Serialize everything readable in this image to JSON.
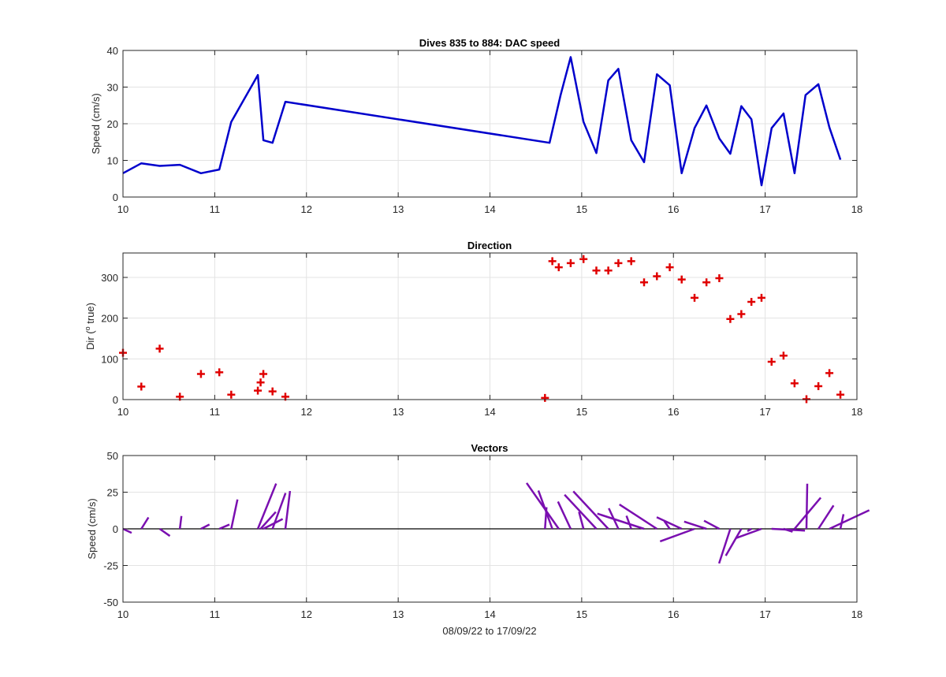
{
  "chart_data": [
    {
      "type": "line",
      "title": "Dives 835 to 884: DAC speed",
      "xlabel": "",
      "ylabel": "Speed (cm/s)",
      "xlim": [
        10,
        18
      ],
      "ylim": [
        0,
        40
      ],
      "xticks": [
        10,
        11,
        12,
        13,
        14,
        15,
        16,
        17,
        18
      ],
      "yticks": [
        0,
        10,
        20,
        30,
        40
      ],
      "grid": true,
      "color": "#0000CC",
      "series": [
        {
          "x": [
            10.0,
            10.2,
            10.4,
            10.62,
            10.85,
            11.05,
            11.18,
            11.47,
            11.53,
            11.63,
            11.77,
            14.65,
            14.77,
            14.88,
            15.02,
            15.16,
            15.29,
            15.4,
            15.54,
            15.68,
            15.82,
            15.96,
            16.09,
            16.23,
            16.36,
            16.5,
            16.62,
            16.74,
            16.85,
            16.96,
            17.07,
            17.2,
            17.32,
            17.44,
            17.58,
            17.7,
            17.82
          ],
          "y": [
            6.5,
            9.2,
            8.5,
            8.8,
            6.5,
            7.5,
            20.5,
            33.3,
            15.5,
            14.8,
            26.0,
            14.8,
            27.8,
            38.2,
            20.5,
            12.0,
            31.8,
            35.0,
            15.5,
            9.5,
            33.5,
            30.5,
            6.5,
            18.8,
            25.0,
            16.0,
            11.8,
            24.8,
            21.2,
            3.2,
            18.8,
            22.8,
            6.5,
            27.8,
            30.8,
            19.0,
            10.2
          ]
        }
      ]
    },
    {
      "type": "scatter",
      "title": "Direction",
      "xlabel": "",
      "ylabel": "Dir (o true)",
      "ylabel_main": "Dir (",
      "ylabel_sup": "o",
      "ylabel_end": " true)",
      "xlim": [
        10,
        18
      ],
      "ylim": [
        0,
        360
      ],
      "xticks": [
        10,
        11,
        12,
        13,
        14,
        15,
        16,
        17,
        18
      ],
      "yticks": [
        0,
        100,
        200,
        300
      ],
      "grid": true,
      "marker": "+",
      "color": "#E00000",
      "series": [
        {
          "x": [
            10.0,
            10.2,
            10.4,
            10.62,
            10.85,
            11.05,
            11.18,
            11.47,
            11.5,
            11.53,
            11.63,
            11.77,
            14.6,
            14.68,
            14.75,
            14.88,
            15.02,
            15.16,
            15.29,
            15.4,
            15.54,
            15.68,
            15.82,
            15.96,
            16.09,
            16.23,
            16.36,
            16.5,
            16.62,
            16.74,
            16.85,
            16.96,
            17.07,
            17.2,
            17.32,
            17.45,
            17.58,
            17.7,
            17.82
          ],
          "y": [
            115,
            32,
            125,
            7,
            63,
            67,
            12,
            22,
            42,
            63,
            20,
            7,
            4,
            340,
            325,
            335,
            345,
            317,
            317,
            335,
            340,
            288,
            303,
            325,
            295,
            250,
            288,
            298,
            198,
            210,
            240,
            250,
            93,
            108,
            40,
            1,
            33,
            65,
            12
          ]
        }
      ]
    },
    {
      "type": "line",
      "title": "Vectors",
      "xlabel": "08/09/22 to 17/09/22",
      "ylabel": "Speed (cm/s)",
      "xlim": [
        10,
        18
      ],
      "ylim": [
        -50,
        50
      ],
      "xticks": [
        10,
        11,
        12,
        13,
        14,
        15,
        16,
        17,
        18
      ],
      "yticks": [
        -50,
        -25,
        0,
        25,
        50
      ],
      "grid": true,
      "color": "#7A0FB0",
      "vectors": [
        {
          "x": 10.0,
          "dir": 115,
          "speed": 6.5
        },
        {
          "x": 10.2,
          "dir": 32,
          "speed": 9.2
        },
        {
          "x": 10.4,
          "dir": 125,
          "speed": 8.5
        },
        {
          "x": 10.62,
          "dir": 7,
          "speed": 8.8
        },
        {
          "x": 10.85,
          "dir": 63,
          "speed": 6.5
        },
        {
          "x": 11.05,
          "dir": 67,
          "speed": 7.5
        },
        {
          "x": 11.18,
          "dir": 12,
          "speed": 20.5
        },
        {
          "x": 11.47,
          "dir": 22,
          "speed": 33.3
        },
        {
          "x": 11.5,
          "dir": 42,
          "speed": 15.5
        },
        {
          "x": 11.53,
          "dir": 63,
          "speed": 14.8
        },
        {
          "x": 11.63,
          "dir": 20,
          "speed": 26.0
        },
        {
          "x": 11.77,
          "dir": 7,
          "speed": 26.0
        },
        {
          "x": 14.6,
          "dir": 4,
          "speed": 14.8
        },
        {
          "x": 14.68,
          "dir": 340,
          "speed": 27.8
        },
        {
          "x": 14.75,
          "dir": 325,
          "speed": 38.2
        },
        {
          "x": 14.88,
          "dir": 335,
          "speed": 20.5
        },
        {
          "x": 15.02,
          "dir": 345,
          "speed": 12.0
        },
        {
          "x": 15.16,
          "dir": 317,
          "speed": 31.8
        },
        {
          "x": 15.29,
          "dir": 317,
          "speed": 35.0
        },
        {
          "x": 15.4,
          "dir": 335,
          "speed": 15.5
        },
        {
          "x": 15.54,
          "dir": 340,
          "speed": 9.5
        },
        {
          "x": 15.68,
          "dir": 288,
          "speed": 33.5
        },
        {
          "x": 15.82,
          "dir": 303,
          "speed": 30.5
        },
        {
          "x": 15.96,
          "dir": 325,
          "speed": 6.5
        },
        {
          "x": 16.09,
          "dir": 295,
          "speed": 18.8
        },
        {
          "x": 16.23,
          "dir": 250,
          "speed": 25.0
        },
        {
          "x": 16.36,
          "dir": 288,
          "speed": 16.0
        },
        {
          "x": 16.5,
          "dir": 298,
          "speed": 11.8
        },
        {
          "x": 16.62,
          "dir": 198,
          "speed": 24.8
        },
        {
          "x": 16.74,
          "dir": 210,
          "speed": 21.2
        },
        {
          "x": 16.85,
          "dir": 240,
          "speed": 3.2
        },
        {
          "x": 16.96,
          "dir": 250,
          "speed": 18.8
        },
        {
          "x": 17.07,
          "dir": 93,
          "speed": 22.8
        },
        {
          "x": 17.2,
          "dir": 108,
          "speed": 6.5
        },
        {
          "x": 17.32,
          "dir": 40,
          "speed": 27.8
        },
        {
          "x": 17.45,
          "dir": 1,
          "speed": 30.8
        },
        {
          "x": 17.58,
          "dir": 33,
          "speed": 19.0
        },
        {
          "x": 17.7,
          "dir": 65,
          "speed": 30.0
        },
        {
          "x": 17.82,
          "dir": 12,
          "speed": 10.2
        }
      ]
    }
  ]
}
